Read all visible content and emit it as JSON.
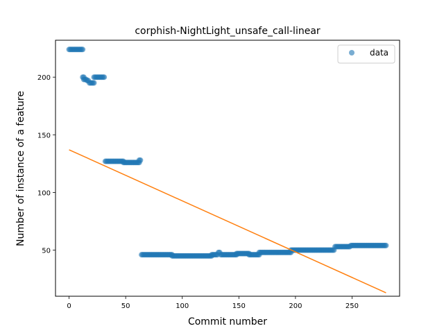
{
  "chart_data": {
    "type": "scatter",
    "title": "corphish-NightLight_unsafe_call-linear",
    "xlabel": "Commit number",
    "ylabel": "Number of instance of a feature",
    "xlim": [
      -12,
      292
    ],
    "ylim": [
      10,
      232
    ],
    "xticks": [
      0,
      50,
      100,
      150,
      200,
      250
    ],
    "yticks": [
      50,
      100,
      150,
      200
    ],
    "grid": false,
    "legend": {
      "position": "top-right",
      "entries": [
        "data"
      ]
    },
    "series": [
      {
        "name": "data",
        "kind": "scatter",
        "color": "#1f77b4",
        "segments": [
          {
            "x_start": 0,
            "x_end": 12,
            "y": 224
          },
          {
            "x_start": 12,
            "x_end": 13,
            "y": 200
          },
          {
            "x_start": 13,
            "x_end": 15,
            "y": 198
          },
          {
            "x_start": 16,
            "x_end": 17,
            "y": 197
          },
          {
            "x_start": 18,
            "x_end": 22,
            "y": 195
          },
          {
            "x_start": 22,
            "x_end": 31,
            "y": 200
          },
          {
            "x_start": 32,
            "x_end": 48,
            "y": 127
          },
          {
            "x_start": 48,
            "x_end": 62,
            "y": 126
          },
          {
            "x_start": 62,
            "x_end": 63,
            "y": 128
          },
          {
            "x_start": 64,
            "x_end": 91,
            "y": 46
          },
          {
            "x_start": 91,
            "x_end": 126,
            "y": 45
          },
          {
            "x_start": 126,
            "x_end": 131,
            "y": 46
          },
          {
            "x_start": 132,
            "x_end": 133,
            "y": 48
          },
          {
            "x_start": 134,
            "x_end": 148,
            "y": 46
          },
          {
            "x_start": 148,
            "x_end": 159,
            "y": 47
          },
          {
            "x_start": 159,
            "x_end": 168,
            "y": 46
          },
          {
            "x_start": 168,
            "x_end": 196,
            "y": 48
          },
          {
            "x_start": 196,
            "x_end": 234,
            "y": 50
          },
          {
            "x_start": 235,
            "x_end": 248,
            "y": 53
          },
          {
            "x_start": 249,
            "x_end": 280,
            "y": 54
          }
        ]
      },
      {
        "name": "",
        "kind": "line",
        "color": "#ff7f0e",
        "x": [
          0,
          280
        ],
        "y": [
          137,
          13
        ]
      }
    ]
  }
}
